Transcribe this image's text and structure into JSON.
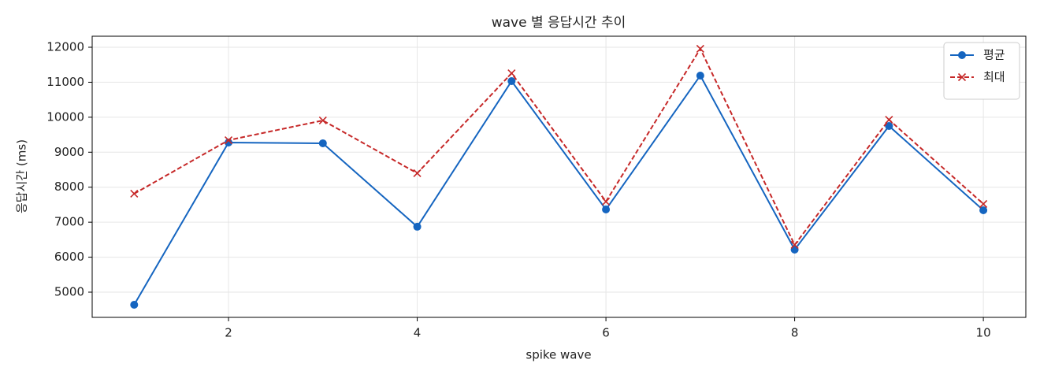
{
  "chart_data": {
    "type": "line",
    "title": "wave 별 응답시간 추이",
    "x_label": "spike wave",
    "y_label": "응답시간 (ms)",
    "x": [
      1,
      2,
      3,
      4,
      5,
      6,
      7,
      8,
      9,
      10
    ],
    "series": [
      {
        "name": "평균",
        "color": "#1565c0",
        "marker": "o",
        "dash": "solid",
        "values": [
          4640,
          9277,
          9255,
          6870,
          11032,
          7363,
          11190,
          6216,
          9749,
          7341
        ]
      },
      {
        "name": "최대",
        "color": "#c62828",
        "marker": "x",
        "dash": "dashed",
        "values": [
          7814,
          9344,
          9907,
          8399,
          11257,
          7589,
          11955,
          6351,
          9929,
          7521
        ]
      }
    ],
    "xlim": [
      0.555,
      10.45
    ],
    "ylim": [
      4280,
      12315
    ],
    "xticks": [
      2,
      4,
      6,
      8,
      10
    ],
    "yticks": [
      5000,
      6000,
      7000,
      8000,
      9000,
      10000,
      11000,
      12000
    ],
    "grid": true,
    "legend": "upper right"
  }
}
